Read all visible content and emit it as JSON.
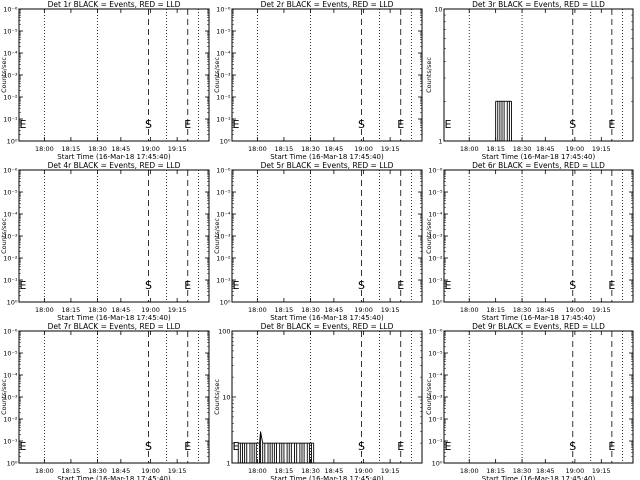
{
  "chart_data": [
    {
      "type": "line",
      "title": "Det 1r BLACK = Events, RED = LLD",
      "xlabel": "Start Time (16-Mar-18 17:45:40)",
      "ylabel": "Counts/sec",
      "x_ticks": [
        "18:00",
        "18:15",
        "18:30",
        "18:45",
        "19:00",
        "19:15"
      ],
      "y_scale": "log",
      "y_ticks": [
        "10⁰",
        "10⁻¹",
        "10⁻²",
        "10⁻³",
        "10⁻⁴",
        "10⁻⁵",
        "10⁻⁶"
      ],
      "y_top_label": "10⁻⁶",
      "markers": {
        "start": "S",
        "end": "E"
      },
      "series": []
    },
    {
      "type": "line",
      "title": "Det 2r BLACK = Events, RED = LLD",
      "xlabel": "Start Time (16-Mar-18 17:45:40)",
      "ylabel": "Counts/sec",
      "x_ticks": [
        "18:00",
        "18:15",
        "18:30",
        "18:45",
        "19:00",
        "19:15"
      ],
      "y_scale": "log",
      "y_ticks": [
        "10⁰",
        "10⁻¹",
        "10⁻²",
        "10⁻³",
        "10⁻⁴",
        "10⁻⁵",
        "10⁻⁶"
      ],
      "y_top_label": "10⁻⁶",
      "markers": {
        "start": "S",
        "end": "E"
      },
      "series": []
    },
    {
      "type": "line",
      "title": "Det 3r BLACK = Events, RED = LLD",
      "xlabel": "Start Time (16-Mar-18 17:45:40)",
      "ylabel": "Counts/sec",
      "x_ticks": [
        "18:00",
        "18:15",
        "18:30",
        "18:45",
        "19:00",
        "19:15"
      ],
      "y_scale": "log",
      "y_ticks": [
        "1",
        "10"
      ],
      "y_top_label": "10",
      "markers": {
        "start": "S",
        "end": "E"
      },
      "series": [
        {
          "values": [
            [
              18.25,
              2
            ],
            [
              18.27,
              2
            ],
            [
              18.29,
              2
            ],
            [
              18.31,
              2
            ],
            [
              18.33,
              2
            ],
            [
              18.36,
              2
            ],
            [
              18.38,
              2
            ],
            [
              18.4,
              2
            ]
          ]
        }
      ]
    },
    {
      "type": "line",
      "title": "Det 4r BLACK = Events, RED = LLD",
      "xlabel": "Start Time (16-Mar-18 17:45:40)",
      "ylabel": "Counts/sec",
      "x_ticks": [
        "18:00",
        "18:15",
        "18:30",
        "18:45",
        "19:00",
        "19:15"
      ],
      "y_scale": "log",
      "y_ticks": [
        "10⁰",
        "10⁻¹",
        "10⁻²",
        "10⁻³",
        "10⁻⁴",
        "10⁻⁵",
        "10⁻⁶"
      ],
      "y_top_label": "10⁻⁶",
      "markers": {
        "start": "S",
        "end": "E"
      },
      "series": []
    },
    {
      "type": "line",
      "title": "Det 5r BLACK = Events, RED = LLD",
      "xlabel": "Start Time (16-Mar-18 17:45:40)",
      "ylabel": "Counts/sec",
      "x_ticks": [
        "18:00",
        "18:15",
        "18:30",
        "18:45",
        "19:00",
        "19:15"
      ],
      "y_scale": "log",
      "y_ticks": [
        "10⁰",
        "10⁻¹",
        "10⁻²",
        "10⁻³",
        "10⁻⁴",
        "10⁻⁵",
        "10⁻⁶"
      ],
      "y_top_label": "10⁻⁶",
      "markers": {
        "start": "S",
        "end": "E"
      },
      "series": []
    },
    {
      "type": "line",
      "title": "Det 6r BLACK = Events, RED = LLD",
      "xlabel": "Start Time (16-Mar-18 17:45:40)",
      "ylabel": "Counts/sec",
      "x_ticks": [
        "18:00",
        "18:15",
        "18:30",
        "18:45",
        "19:00",
        "19:15"
      ],
      "y_scale": "log",
      "y_ticks": [
        "10⁰",
        "10⁻¹",
        "10⁻²",
        "10⁻³",
        "10⁻⁴",
        "10⁻⁵",
        "10⁻⁶"
      ],
      "y_top_label": "10⁻⁶",
      "markers": {
        "start": "S",
        "end": "E"
      },
      "series": []
    },
    {
      "type": "line",
      "title": "Det 7r BLACK = Events, RED = LLD",
      "xlabel": "Start Time (16-Mar-18 17:45:40)",
      "ylabel": "Counts/sec",
      "x_ticks": [
        "18:00",
        "18:15",
        "18:30",
        "18:45",
        "19:00",
        "19:15"
      ],
      "y_scale": "log",
      "y_ticks": [
        "10⁰",
        "10⁻¹",
        "10⁻²",
        "10⁻³",
        "10⁻⁴",
        "10⁻⁵",
        "10⁻⁶"
      ],
      "y_top_label": "10⁻⁶",
      "markers": {
        "start": "S",
        "end": "E"
      },
      "series": []
    },
    {
      "type": "line",
      "title": "Det 8r BLACK = Events, RED = LLD",
      "xlabel": "Start Time (16-Mar-18 17:45:40)",
      "ylabel": "Counts/sec",
      "x_ticks": [
        "18:00",
        "18:15",
        "18:30",
        "18:45",
        "19:00",
        "19:15"
      ],
      "y_scale": "log",
      "y_ticks": [
        "1",
        "10",
        "100"
      ],
      "y_top_label": "100",
      "markers": {
        "start": "S",
        "end": "E"
      },
      "series": [
        {
          "values": [
            [
              17.82,
              2
            ],
            [
              17.84,
              2
            ],
            [
              17.86,
              2
            ],
            [
              17.88,
              2
            ],
            [
              17.9,
              2
            ],
            [
              17.93,
              2
            ],
            [
              17.95,
              2
            ],
            [
              17.97,
              2
            ],
            [
              17.99,
              2
            ],
            [
              18.02,
              2
            ],
            [
              18.03,
              3
            ],
            [
              18.05,
              2
            ],
            [
              18.07,
              2
            ],
            [
              18.1,
              2
            ],
            [
              18.12,
              2
            ],
            [
              18.14,
              2
            ],
            [
              18.16,
              2
            ],
            [
              18.18,
              2
            ],
            [
              18.21,
              2
            ],
            [
              18.23,
              2
            ],
            [
              18.25,
              2
            ],
            [
              18.28,
              2
            ],
            [
              18.3,
              2
            ],
            [
              18.32,
              2
            ],
            [
              18.35,
              2
            ],
            [
              18.37,
              2
            ],
            [
              18.4,
              2
            ],
            [
              18.42,
              2
            ],
            [
              18.44,
              2
            ],
            [
              18.47,
              2
            ],
            [
              18.49,
              2
            ],
            [
              18.51,
              2
            ],
            [
              18.53,
              2
            ]
          ]
        }
      ]
    },
    {
      "type": "line",
      "title": "Det 9r BLACK = Events, RED = LLD",
      "xlabel": "Start Time (16-Mar-18 17:45:40)",
      "ylabel": "Counts/sec",
      "x_ticks": [
        "18:00",
        "18:15",
        "18:30",
        "18:45",
        "19:00",
        "19:15"
      ],
      "y_scale": "log",
      "y_ticks": [
        "10⁰",
        "10⁻¹",
        "10⁻²",
        "10⁻³",
        "10⁻⁴",
        "10⁻⁵",
        "10⁻⁶"
      ],
      "y_top_label": "10⁻⁶",
      "markers": {
        "start": "S",
        "end": "E"
      },
      "series": []
    }
  ]
}
